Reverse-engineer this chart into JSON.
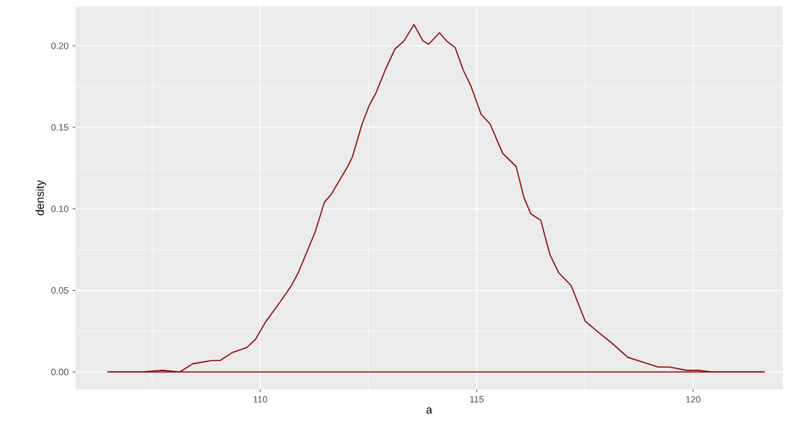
{
  "chart_data": {
    "type": "line",
    "xlabel": "a",
    "ylabel": "density",
    "xlim": [
      105.73,
      122.07
    ],
    "ylim": [
      -0.0107,
      0.2242
    ],
    "xticks": [
      {
        "value": 107.5,
        "label": null
      },
      110,
      {
        "value": 112.5,
        "label": null
      },
      115,
      {
        "value": 117.5,
        "label": null
      },
      120
    ],
    "yticks": [
      {
        "value": 0,
        "label": "0.00"
      },
      {
        "value": 0.025,
        "label": null
      },
      {
        "value": 0.05,
        "label": "0.05"
      },
      {
        "value": 0.075,
        "label": null
      },
      {
        "value": 0.1,
        "label": "0.10"
      },
      {
        "value": 0.125,
        "label": null
      },
      {
        "value": 0.15,
        "label": "0.15"
      },
      {
        "value": 0.175,
        "label": null
      },
      {
        "value": 0.2,
        "label": "0.20"
      }
    ],
    "grid": true,
    "marker": "none",
    "line_style": "solid",
    "series": [
      {
        "color": "#8b0000",
        "x": [
          106.47,
          107.25,
          107.74,
          108.14,
          108.44,
          108.88,
          109.07,
          109.36,
          109.69,
          109.89,
          110.13,
          110.46,
          110.72,
          110.88,
          111.27,
          111.48,
          111.64,
          112.02,
          112.13,
          112.35,
          112.51,
          112.67,
          112.9,
          113.11,
          113.32,
          113.55,
          113.76,
          113.89,
          114.14,
          114.3,
          114.5,
          114.69,
          114.87,
          115.1,
          115.31,
          115.6,
          115.91,
          116.09,
          116.25,
          116.48,
          116.69,
          116.89,
          117.18,
          117.51,
          117.78,
          118.11,
          118.49,
          119.19,
          119.46,
          119.84,
          120.11,
          120.44,
          121.65
        ],
        "values": [
          0,
          0,
          0.001,
          0,
          0.005,
          0.007,
          0.007,
          0.012,
          0.015,
          0.02,
          0.031,
          0.043,
          0.053,
          0.061,
          0.086,
          0.104,
          0.109,
          0.126,
          0.132,
          0.152,
          0.163,
          0.171,
          0.186,
          0.198,
          0.203,
          0.213,
          0.203,
          0.201,
          0.208,
          0.203,
          0.199,
          0.185,
          0.175,
          0.158,
          0.152,
          0.134,
          0.126,
          0.107,
          0.097,
          0.093,
          0.072,
          0.061,
          0.053,
          0.031,
          0.025,
          0.018,
          0.009,
          0.003,
          0.003,
          0.001,
          0.001,
          0,
          0
        ]
      },
      {
        "color": "#8b0000",
        "x": [
          106.47,
          121.65
        ],
        "values": [
          0,
          0
        ]
      }
    ]
  }
}
